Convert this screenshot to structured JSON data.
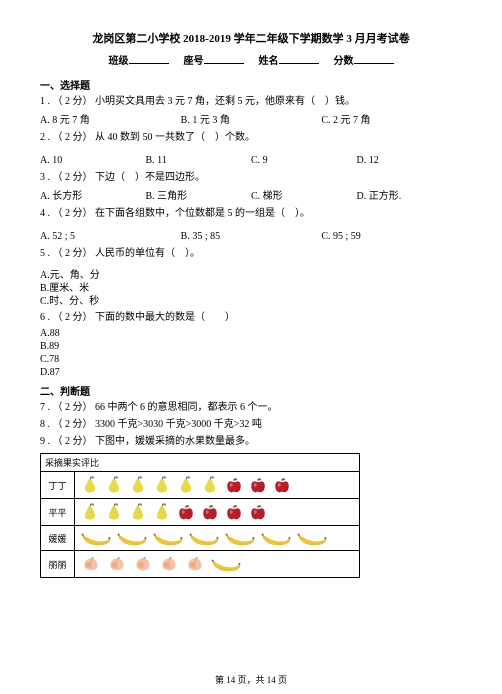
{
  "title": "龙岗区第二小学校 2018-2019 学年二年级下学期数学 3 月月考试卷",
  "header": {
    "class_label": "班级",
    "seat_label": "座号",
    "name_label": "姓名",
    "score_label": "分数"
  },
  "section1": "一、选择题",
  "q1": {
    "stem": "1 . （ 2 分） 小明买文具用去 3 元 7 角，还剩 5 元，他原来有（　）钱。",
    "a": "A. 8 元 7 角",
    "b": "B. 1 元 3 角",
    "c": "C. 2 元 7 角"
  },
  "q2": {
    "stem": "2 . （ 2 分） 从 40 数到 50 一共数了（　）个数。",
    "a": "A. 10",
    "b": "B. 11",
    "c": "C. 9",
    "d": "D. 12"
  },
  "q3": {
    "stem": "3 . （ 2 分） 下边（　）不是四边形。",
    "a": "A. 长方形",
    "b": "B. 三角形",
    "c": "C. 梯形",
    "d": "D. 正方形."
  },
  "q4": {
    "stem": "4 . （ 2 分） 在下面各组数中，个位数都是 5 的一组是（　）。",
    "a": "A. 52 ; 5",
    "b": "B. 35 ; 85",
    "c": "C. 95 ; 59"
  },
  "q5": {
    "stem": "5 . （ 2 分） 人民币的单位有（　）。",
    "a": "A.元、角、分",
    "b": "B.厘米、米",
    "c": "C.时、分、秒"
  },
  "q6": {
    "stem": "6 . （ 2 分） 下面的数中最大的数是（　　）",
    "a": "A.88",
    "b": "B.89",
    "c": "C.78",
    "d": "D.87"
  },
  "section2": "二、判断题",
  "q7": "7 . （ 2 分） 66 中两个 6 的意思相同，都表示 6 个一。",
  "q8": "8 . （ 2 分） 3300 千克>3030 千克>3000 千克>32 吨",
  "q9": "9 . （ 2 分） 下图中，媛媛采摘的水果数量最多。",
  "table": {
    "caption": "采摘果实评比",
    "rows": [
      {
        "name": "丁丁"
      },
      {
        "name": "平平"
      },
      {
        "name": "媛媛"
      },
      {
        "name": "丽丽"
      }
    ]
  },
  "fruit": {
    "pear": {
      "body": "#e6d94a",
      "leaf": "#5a8a3a"
    },
    "apple": {
      "body": "#b4202a",
      "leaf": "#4a7a2a"
    },
    "banana": {
      "body": "#f2cc3a",
      "tips": "#7a5a2a"
    },
    "peach": {
      "body": "#f4c4a8",
      "blush": "#e89070"
    },
    "dingding_pears": 6,
    "dingding_apples": 3,
    "pingping_pears": 4,
    "pingping_apples": 4,
    "yuanyuan_bananas": 7,
    "lili_peaches": 5,
    "lili_bananas": 1
  },
  "footer": "第 14 页，共 14 页"
}
